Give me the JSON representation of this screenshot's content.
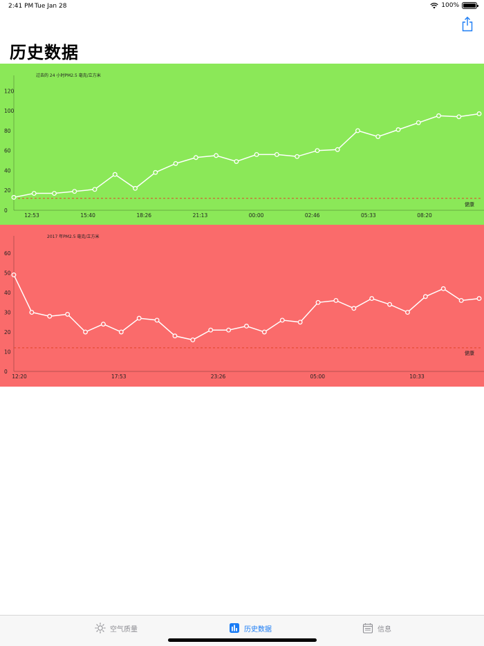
{
  "status_bar": {
    "time": "2:41 PM",
    "date": "Tue Jan 28",
    "battery": "100%",
    "battery_level": 1.0
  },
  "page_title": "历史数据",
  "colors": {
    "good_panel": "#8be858",
    "bad_panel": "#fa6b6b",
    "threshold_line": "#e0442a",
    "line": "#ffffff",
    "tab_active": "#1a7cf5",
    "tab_inactive": "#8e8e93"
  },
  "chart_data": [
    {
      "type": "line",
      "title": "过去的 24 小时PM2.5 毫克/立方米",
      "ylim": [
        0,
        130
      ],
      "yticks": [
        0,
        20,
        40,
        60,
        80,
        100,
        120
      ],
      "xtick_labels": [
        "12:53",
        "15:40",
        "18:26",
        "21:13",
        "00:00",
        "02:46",
        "05:33",
        "08:20"
      ],
      "values": [
        13,
        17,
        17,
        19,
        21,
        36,
        22,
        38,
        47,
        53,
        55,
        49,
        56,
        56,
        54,
        60,
        61,
        80,
        74,
        81,
        88,
        95,
        94,
        97
      ],
      "threshold": 12,
      "threshold_label": "健康",
      "grid": false
    },
    {
      "type": "line",
      "title": "2017 年PM2.5 毫克/立方米",
      "ylim": [
        0,
        66
      ],
      "yticks": [
        0,
        10,
        20,
        30,
        40,
        50,
        60
      ],
      "xtick_labels": [
        "12:20",
        "17:53",
        "23:26",
        "05:00",
        "10:33"
      ],
      "values": [
        49,
        30,
        28,
        29,
        20,
        24,
        20,
        27,
        26,
        18,
        16,
        21,
        21,
        23,
        20,
        26,
        25,
        35,
        36,
        32,
        37,
        34,
        30,
        38,
        42,
        36,
        37
      ],
      "threshold": 12,
      "threshold_label": "健康",
      "grid": false
    }
  ],
  "tab_bar": {
    "tabs": [
      {
        "label": "空气质量",
        "icon": "sun-icon",
        "active": false
      },
      {
        "label": "历史数据",
        "icon": "bar-chart-icon",
        "active": true
      },
      {
        "label": "信息",
        "icon": "calendar-icon",
        "active": false
      }
    ]
  }
}
